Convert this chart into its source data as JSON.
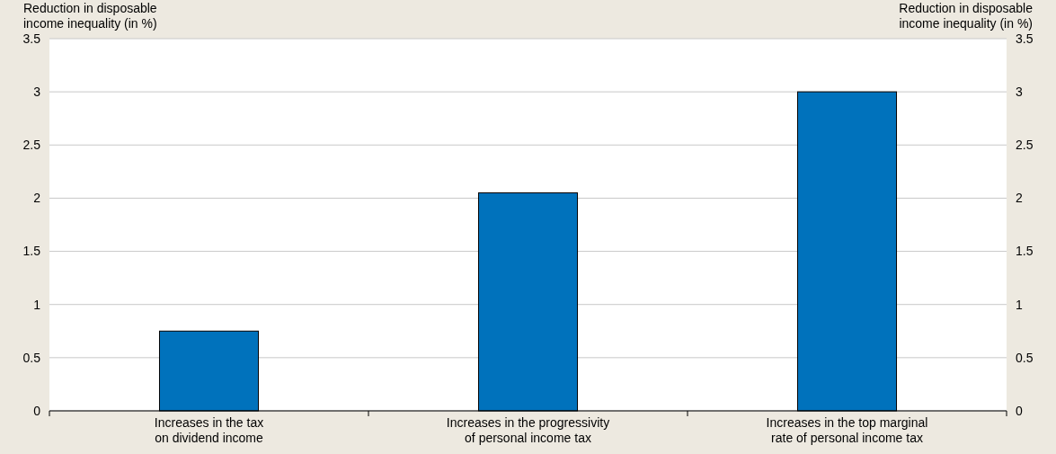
{
  "chart_data": {
    "type": "bar",
    "categories": [
      "Increases in the tax on dividend income",
      "Increases in the progressivity of personal income tax",
      "Increases in the top marginal rate of personal income tax"
    ],
    "values": [
      0.75,
      2.05,
      3.0
    ],
    "color": "#0072bc",
    "ylabel": "Reduction in disposable income inequality (in %)",
    "y2label": "Reduction in disposable income inequality (in %)",
    "ylim": [
      0,
      3.5
    ],
    "yticks": [
      0,
      0.5,
      1,
      1.5,
      2,
      2.5,
      3,
      3.5
    ],
    "y2lim": [
      0,
      3.5
    ],
    "y2ticks": [
      0,
      0.5,
      1,
      1.5,
      2,
      2.5,
      3,
      3.5
    ],
    "grid": "y"
  }
}
